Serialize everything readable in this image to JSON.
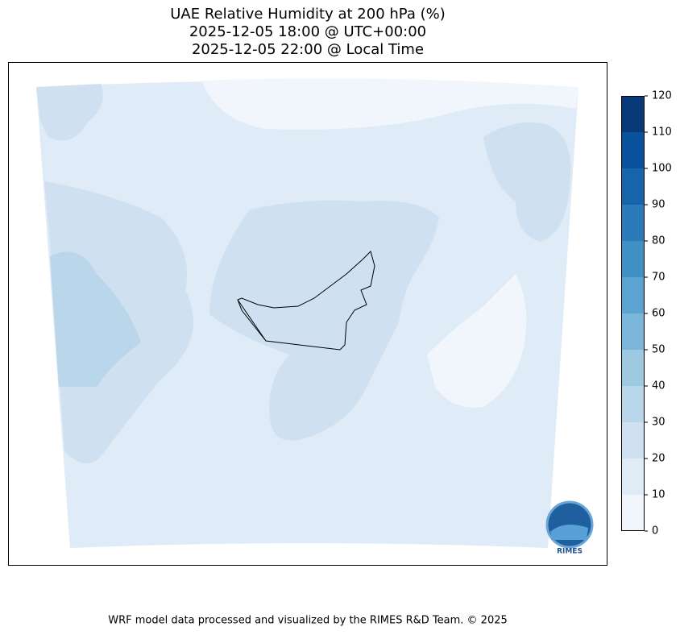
{
  "title": [
    "UAE Relative Humidity at 200 hPa (%)",
    "2025-12-05 18:00 @ UTC+00:00",
    "2025-12-05 22:00 @ Local Time"
  ],
  "colorbar": {
    "levels": [
      0,
      10,
      20,
      30,
      40,
      50,
      60,
      70,
      80,
      90,
      100,
      110,
      120
    ],
    "colors": [
      "#f0f6fc",
      "#dfebf6",
      "#cfe0f1",
      "#b9d6ea",
      "#9ecae1",
      "#7cb7da",
      "#5ba3d0",
      "#4090c5",
      "#2b7bba",
      "#1764ab",
      "#08519c",
      "#083a7a"
    ]
  },
  "logo": "RIMES",
  "footer": "WRF model data processed and visualized by the RIMES R&D Team. © 2025"
}
